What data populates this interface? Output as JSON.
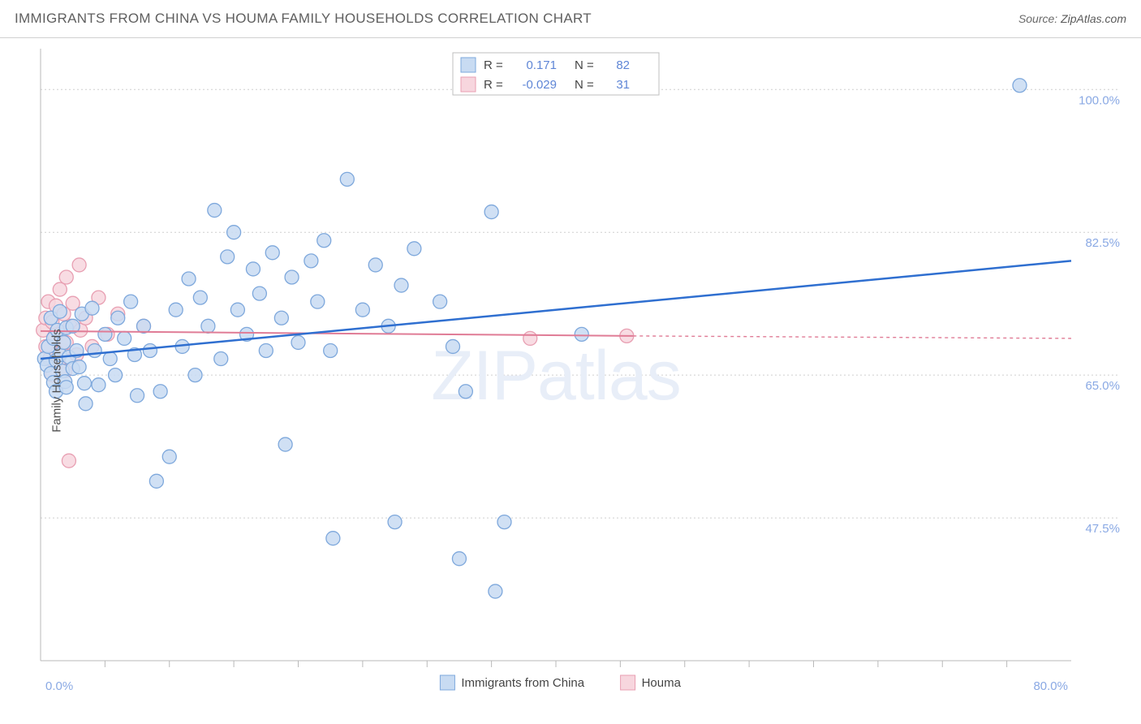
{
  "title": "IMMIGRANTS FROM CHINA VS HOUMA FAMILY HOUSEHOLDS CORRELATION CHART",
  "source_label": "Source: ",
  "source_value": "ZipAtlas.com",
  "ylabel": "Family Households",
  "watermark": "ZIPatlas",
  "chart": {
    "type": "scatter-correlation",
    "xlim": [
      0,
      80
    ],
    "ylim": [
      30,
      105
    ],
    "x_tick_minor": [
      5,
      10,
      15,
      20,
      25,
      30,
      35,
      40,
      45,
      50,
      55,
      60,
      65,
      70,
      75
    ],
    "x_range_labels": [
      "0.0%",
      "80.0%"
    ],
    "y_ticks": [
      47.5,
      65.0,
      82.5,
      100.0
    ],
    "y_tick_labels": [
      "47.5%",
      "65.0%",
      "82.5%",
      "100.0%"
    ],
    "grid_color": "#cfcfcf",
    "axis_color": "#b9b9b9",
    "background_color": "#ffffff",
    "marker_radius": 8.5,
    "marker_stroke_width": 1.3,
    "series": {
      "china": {
        "label": "Immigrants from China",
        "fill": "#c8dbf2",
        "stroke": "#7ea8dc",
        "trend_color": "#2f6fd0",
        "trend": {
          "x1": 0,
          "y1": 67.0,
          "x2": 80,
          "y2": 79.0
        },
        "R": "0.171",
        "N": "82",
        "points": [
          [
            0.3,
            67.0
          ],
          [
            0.5,
            66.2
          ],
          [
            0.6,
            68.5
          ],
          [
            0.8,
            65.2
          ],
          [
            0.8,
            72.0
          ],
          [
            1.0,
            64.1
          ],
          [
            1.0,
            69.5
          ],
          [
            1.2,
            66.8
          ],
          [
            1.2,
            63.0
          ],
          [
            1.3,
            70.5
          ],
          [
            1.5,
            67.5
          ],
          [
            1.5,
            72.8
          ],
          [
            1.7,
            65.5
          ],
          [
            1.8,
            69.0
          ],
          [
            1.9,
            64.2
          ],
          [
            2.0,
            70.8
          ],
          [
            2.0,
            63.5
          ],
          [
            2.2,
            67.2
          ],
          [
            2.5,
            71.0
          ],
          [
            2.5,
            65.8
          ],
          [
            2.8,
            68.0
          ],
          [
            3.0,
            66.0
          ],
          [
            3.2,
            72.5
          ],
          [
            3.4,
            64.0
          ],
          [
            3.5,
            61.5
          ],
          [
            4.0,
            73.2
          ],
          [
            4.2,
            68.0
          ],
          [
            4.5,
            63.8
          ],
          [
            5.0,
            70.0
          ],
          [
            5.4,
            67.0
          ],
          [
            5.8,
            65.0
          ],
          [
            6.0,
            72.0
          ],
          [
            6.5,
            69.5
          ],
          [
            7.0,
            74.0
          ],
          [
            7.3,
            67.5
          ],
          [
            7.5,
            62.5
          ],
          [
            8.0,
            71.0
          ],
          [
            8.5,
            68.0
          ],
          [
            9.0,
            52.0
          ],
          [
            9.3,
            63.0
          ],
          [
            10.0,
            55.0
          ],
          [
            10.5,
            73.0
          ],
          [
            11.0,
            68.5
          ],
          [
            11.5,
            76.8
          ],
          [
            12.0,
            65.0
          ],
          [
            12.4,
            74.5
          ],
          [
            13.0,
            71.0
          ],
          [
            13.5,
            85.2
          ],
          [
            14.0,
            67.0
          ],
          [
            14.5,
            79.5
          ],
          [
            15.0,
            82.5
          ],
          [
            15.3,
            73.0
          ],
          [
            16.0,
            70.0
          ],
          [
            16.5,
            78.0
          ],
          [
            17.0,
            75.0
          ],
          [
            17.5,
            68.0
          ],
          [
            18.0,
            80.0
          ],
          [
            18.7,
            72.0
          ],
          [
            19.0,
            56.5
          ],
          [
            19.5,
            77.0
          ],
          [
            20.0,
            69.0
          ],
          [
            21.0,
            79.0
          ],
          [
            21.5,
            74.0
          ],
          [
            22.0,
            81.5
          ],
          [
            22.5,
            68.0
          ],
          [
            22.7,
            45.0
          ],
          [
            23.8,
            89.0
          ],
          [
            25.0,
            73.0
          ],
          [
            26.0,
            78.5
          ],
          [
            27.0,
            71.0
          ],
          [
            27.5,
            47.0
          ],
          [
            28.0,
            76.0
          ],
          [
            29.0,
            80.5
          ],
          [
            31.0,
            74.0
          ],
          [
            32.0,
            68.5
          ],
          [
            32.5,
            42.5
          ],
          [
            33.0,
            63.0
          ],
          [
            35.0,
            85.0
          ],
          [
            35.3,
            38.5
          ],
          [
            36.0,
            47.0
          ],
          [
            42.0,
            70.0
          ],
          [
            76.0,
            100.5
          ]
        ]
      },
      "houma": {
        "label": "Houma",
        "fill": "#f7d6de",
        "stroke": "#e89fb2",
        "trend_color": "#e07c96",
        "trend": {
          "x1": 0,
          "y1": 70.4,
          "x2": 46,
          "y2": 69.8
        },
        "trend_ext": {
          "x1": 46,
          "y1": 69.8,
          "x2": 80,
          "y2": 69.5
        },
        "R": "-0.029",
        "N": "31",
        "points": [
          [
            0.2,
            70.5
          ],
          [
            0.4,
            72.0
          ],
          [
            0.4,
            68.5
          ],
          [
            0.6,
            74.0
          ],
          [
            0.7,
            67.0
          ],
          [
            0.9,
            71.5
          ],
          [
            0.9,
            65.0
          ],
          [
            1.1,
            69.8
          ],
          [
            1.2,
            73.5
          ],
          [
            1.4,
            66.5
          ],
          [
            1.5,
            70.0
          ],
          [
            1.5,
            75.5
          ],
          [
            1.7,
            68.0
          ],
          [
            1.8,
            72.5
          ],
          [
            1.9,
            65.5
          ],
          [
            2.0,
            77.0
          ],
          [
            2.0,
            69.0
          ],
          [
            2.2,
            54.5
          ],
          [
            2.3,
            71.0
          ],
          [
            2.5,
            73.8
          ],
          [
            2.8,
            67.5
          ],
          [
            3.0,
            78.5
          ],
          [
            3.1,
            70.5
          ],
          [
            3.5,
            72.0
          ],
          [
            4.0,
            68.5
          ],
          [
            4.5,
            74.5
          ],
          [
            5.2,
            70.0
          ],
          [
            6.0,
            72.5
          ],
          [
            8.0,
            71.0
          ],
          [
            38.0,
            69.5
          ],
          [
            45.5,
            69.8
          ]
        ]
      }
    },
    "top_legend": {
      "labels": {
        "R": "R =",
        "N": "N ="
      }
    },
    "bottom_legend": {
      "swatch_w": 18,
      "swatch_h": 18
    }
  }
}
